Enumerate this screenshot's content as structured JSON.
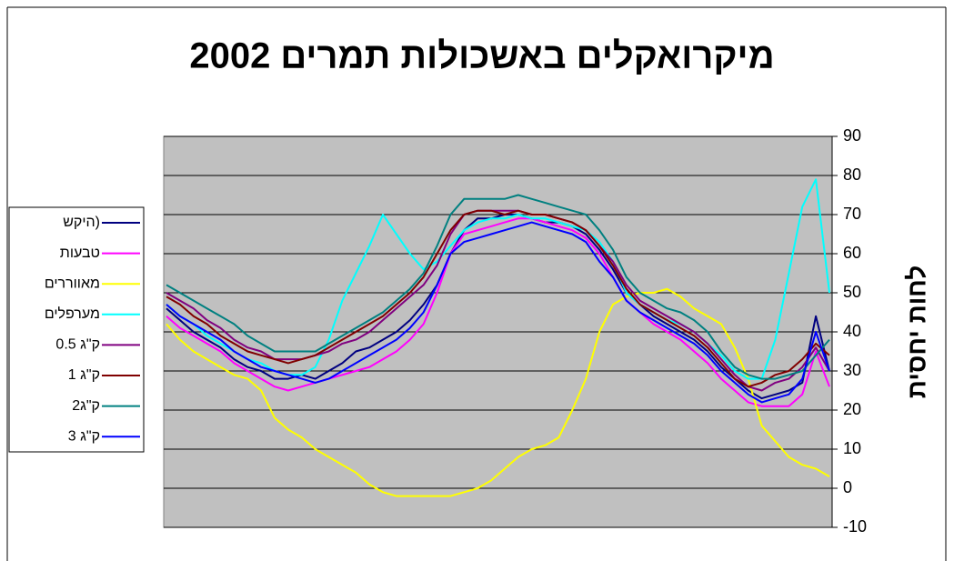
{
  "chart_data": {
    "type": "line",
    "title": "מיקרואקלים באשכולות תמרים 2002",
    "y_axis_label": "לחות יחסית",
    "ylim": [
      -10,
      90
    ],
    "yticks": [
      -10,
      0,
      10,
      20,
      30,
      40,
      50,
      60,
      70,
      80,
      90
    ],
    "grid": true,
    "legend": "left",
    "y_axis_side": "right",
    "series": [
      {
        "name": "היקש)",
        "color": "#000080",
        "values": [
          46,
          43,
          40,
          38,
          36,
          33,
          31,
          30,
          28,
          28,
          29,
          28,
          30,
          32,
          35,
          36,
          38,
          40,
          43,
          47,
          52,
          60,
          66,
          69,
          69,
          70,
          70,
          69,
          68,
          68,
          67,
          65,
          61,
          56,
          50,
          47,
          44,
          42,
          40,
          38,
          35,
          31,
          28,
          25,
          23,
          24,
          25,
          27,
          44,
          30
        ]
      },
      {
        "name": "טבעות",
        "color": "#FF00FF",
        "values": [
          44,
          41,
          39,
          37,
          35,
          32,
          30,
          28,
          26,
          25,
          26,
          27,
          28,
          29,
          30,
          31,
          33,
          35,
          38,
          42,
          50,
          60,
          65,
          66,
          67,
          68,
          69,
          69,
          68,
          67,
          66,
          64,
          60,
          54,
          48,
          45,
          42,
          40,
          38,
          35,
          32,
          28,
          25,
          22,
          21,
          21,
          21,
          24,
          35,
          26
        ]
      },
      {
        "name": "מאווררים",
        "color": "#FFFF00",
        "values": [
          42,
          38,
          35,
          33,
          31,
          29,
          28,
          25,
          18,
          15,
          13,
          10,
          8,
          6,
          4,
          1,
          -1,
          -2,
          -2,
          -2,
          -2,
          -2,
          -1,
          0,
          2,
          5,
          8,
          10,
          11,
          13,
          20,
          28,
          40,
          47,
          49,
          50,
          50,
          51,
          49,
          46,
          44,
          42,
          36,
          28,
          16,
          12,
          8,
          6,
          5,
          3
        ]
      },
      {
        "name": "מערפלים",
        "color": "#00FFFF",
        "values": [
          47,
          44,
          42,
          39,
          37,
          35,
          33,
          32,
          30,
          29,
          29,
          31,
          38,
          48,
          55,
          62,
          70,
          65,
          60,
          56,
          58,
          62,
          66,
          68,
          69,
          69,
          70,
          69,
          69,
          68,
          67,
          66,
          63,
          58,
          50,
          47,
          45,
          43,
          42,
          40,
          37,
          34,
          30,
          28,
          28,
          38,
          55,
          72,
          79,
          50
        ]
      },
      {
        "name": "ק\"ג 0.5",
        "color": "#800080",
        "values": [
          50,
          48,
          46,
          43,
          41,
          38,
          36,
          35,
          33,
          33,
          33,
          34,
          35,
          37,
          38,
          40,
          43,
          46,
          49,
          52,
          57,
          65,
          70,
          71,
          71,
          71,
          71,
          70,
          70,
          69,
          68,
          66,
          62,
          58,
          52,
          48,
          46,
          44,
          42,
          40,
          37,
          33,
          29,
          26,
          25,
          27,
          28,
          31,
          36,
          30
        ]
      },
      {
        "name": "ק\"ג 1",
        "color": "#800000",
        "values": [
          49,
          47,
          44,
          42,
          39,
          37,
          35,
          34,
          33,
          32,
          33,
          34,
          36,
          38,
          40,
          42,
          44,
          47,
          50,
          54,
          60,
          66,
          70,
          71,
          71,
          70,
          71,
          70,
          70,
          69,
          68,
          66,
          62,
          57,
          51,
          47,
          45,
          43,
          41,
          39,
          36,
          32,
          28,
          26,
          27,
          29,
          30,
          33,
          37,
          34
        ]
      },
      {
        "name": "2ק\"ג",
        "color": "#008080",
        "values": [
          52,
          50,
          48,
          46,
          44,
          42,
          39,
          37,
          35,
          35,
          35,
          35,
          37,
          39,
          41,
          43,
          45,
          48,
          51,
          55,
          62,
          70,
          74,
          74,
          74,
          74,
          75,
          74,
          73,
          72,
          71,
          70,
          66,
          61,
          54,
          50,
          48,
          46,
          45,
          43,
          40,
          35,
          31,
          29,
          28,
          28,
          29,
          30,
          34,
          38
        ]
      },
      {
        "name": "ק\"ג 3",
        "color": "#0000FF",
        "values": [
          47,
          44,
          42,
          40,
          38,
          35,
          33,
          31,
          30,
          29,
          28,
          27,
          28,
          30,
          32,
          34,
          36,
          38,
          41,
          45,
          52,
          60,
          63,
          64,
          65,
          66,
          67,
          68,
          67,
          66,
          65,
          63,
          58,
          54,
          48,
          45,
          43,
          41,
          39,
          37,
          34,
          30,
          27,
          24,
          22,
          23,
          24,
          28,
          40,
          30
        ]
      }
    ]
  }
}
